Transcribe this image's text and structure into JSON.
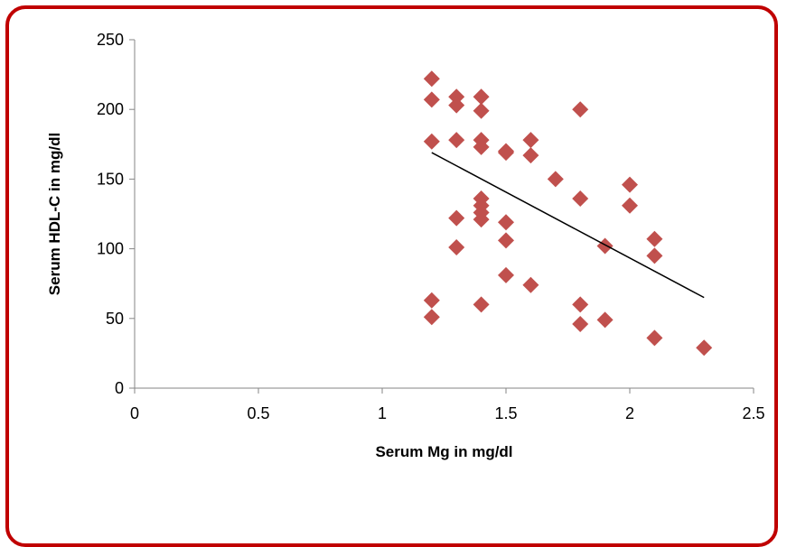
{
  "chart_data": {
    "type": "scatter",
    "title": "",
    "xlabel": "Serum Mg in mg/dl",
    "ylabel": "Serum HDL-C in mg/dl",
    "xlim": [
      0,
      2.5
    ],
    "ylim": [
      0,
      250
    ],
    "x_ticks": [
      "0",
      "0.5",
      "1",
      "1.5",
      "2",
      "2.5"
    ],
    "y_ticks": [
      "0",
      "50",
      "100",
      "150",
      "200",
      "250"
    ],
    "x_tick_values": [
      0,
      0.5,
      1,
      1.5,
      2,
      2.5
    ],
    "y_tick_values": [
      0,
      50,
      100,
      150,
      200,
      250
    ],
    "grid": false,
    "legend": "none",
    "marker": "diamond",
    "marker_color": "#c0504d",
    "trendline_color": "#000000",
    "points": [
      {
        "x": 1.2,
        "y": 222
      },
      {
        "x": 1.2,
        "y": 207
      },
      {
        "x": 1.2,
        "y": 177
      },
      {
        "x": 1.2,
        "y": 63
      },
      {
        "x": 1.2,
        "y": 51
      },
      {
        "x": 1.3,
        "y": 209
      },
      {
        "x": 1.3,
        "y": 203
      },
      {
        "x": 1.3,
        "y": 178
      },
      {
        "x": 1.3,
        "y": 122
      },
      {
        "x": 1.3,
        "y": 101
      },
      {
        "x": 1.4,
        "y": 209
      },
      {
        "x": 1.4,
        "y": 199
      },
      {
        "x": 1.4,
        "y": 178
      },
      {
        "x": 1.4,
        "y": 173
      },
      {
        "x": 1.4,
        "y": 136
      },
      {
        "x": 1.4,
        "y": 131
      },
      {
        "x": 1.4,
        "y": 126
      },
      {
        "x": 1.4,
        "y": 121
      },
      {
        "x": 1.4,
        "y": 60
      },
      {
        "x": 1.5,
        "y": 170
      },
      {
        "x": 1.5,
        "y": 169
      },
      {
        "x": 1.5,
        "y": 119
      },
      {
        "x": 1.5,
        "y": 106
      },
      {
        "x": 1.5,
        "y": 81
      },
      {
        "x": 1.6,
        "y": 178
      },
      {
        "x": 1.6,
        "y": 167
      },
      {
        "x": 1.6,
        "y": 74
      },
      {
        "x": 1.7,
        "y": 150
      },
      {
        "x": 1.8,
        "y": 200
      },
      {
        "x": 1.8,
        "y": 136
      },
      {
        "x": 1.8,
        "y": 60
      },
      {
        "x": 1.8,
        "y": 46
      },
      {
        "x": 1.9,
        "y": 102
      },
      {
        "x": 1.9,
        "y": 49
      },
      {
        "x": 2.0,
        "y": 146
      },
      {
        "x": 2.0,
        "y": 131
      },
      {
        "x": 2.1,
        "y": 107
      },
      {
        "x": 2.1,
        "y": 95
      },
      {
        "x": 2.1,
        "y": 36
      },
      {
        "x": 2.3,
        "y": 29
      }
    ],
    "trendline": {
      "x": [
        1.2,
        2.3
      ],
      "y": [
        169,
        65
      ]
    }
  }
}
